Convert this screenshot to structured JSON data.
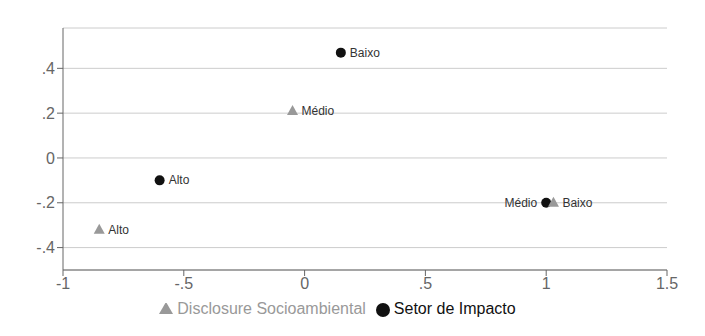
{
  "chart_data": {
    "type": "scatter",
    "xlim": [
      -1.0,
      1.5
    ],
    "ylim": [
      -0.5,
      0.58
    ],
    "xticks": [
      -1,
      {
        "value": -0.5,
        "label": "-.5"
      },
      0,
      {
        "value": 0.5,
        "label": ".5"
      },
      1,
      1.5
    ],
    "yticks": [
      {
        "value": -0.4,
        "label": "-.4"
      },
      {
        "value": -0.2,
        "label": "-.2"
      },
      0,
      {
        "value": 0.2,
        "label": ".2"
      },
      {
        "value": 0.4,
        "label": ".4"
      }
    ],
    "grid": true,
    "legend": "bottom",
    "series": [
      {
        "name": "Setor de Impacto",
        "color": "#111111",
        "marker": "circle",
        "x": [
          0.15,
          -0.6,
          1.0
        ],
        "y": [
          0.47,
          -0.1,
          -0.2
        ],
        "labels": [
          "Baixo",
          "Alto",
          "Médio"
        ]
      },
      {
        "name": "Disclosure Socioambiental",
        "color": "#999999",
        "marker": "triangle",
        "x": [
          -0.05,
          -0.85,
          1.03
        ],
        "y": [
          0.21,
          -0.32,
          -0.2
        ],
        "labels": [
          "Médio",
          "Alto",
          "Baixo"
        ]
      }
    ]
  }
}
